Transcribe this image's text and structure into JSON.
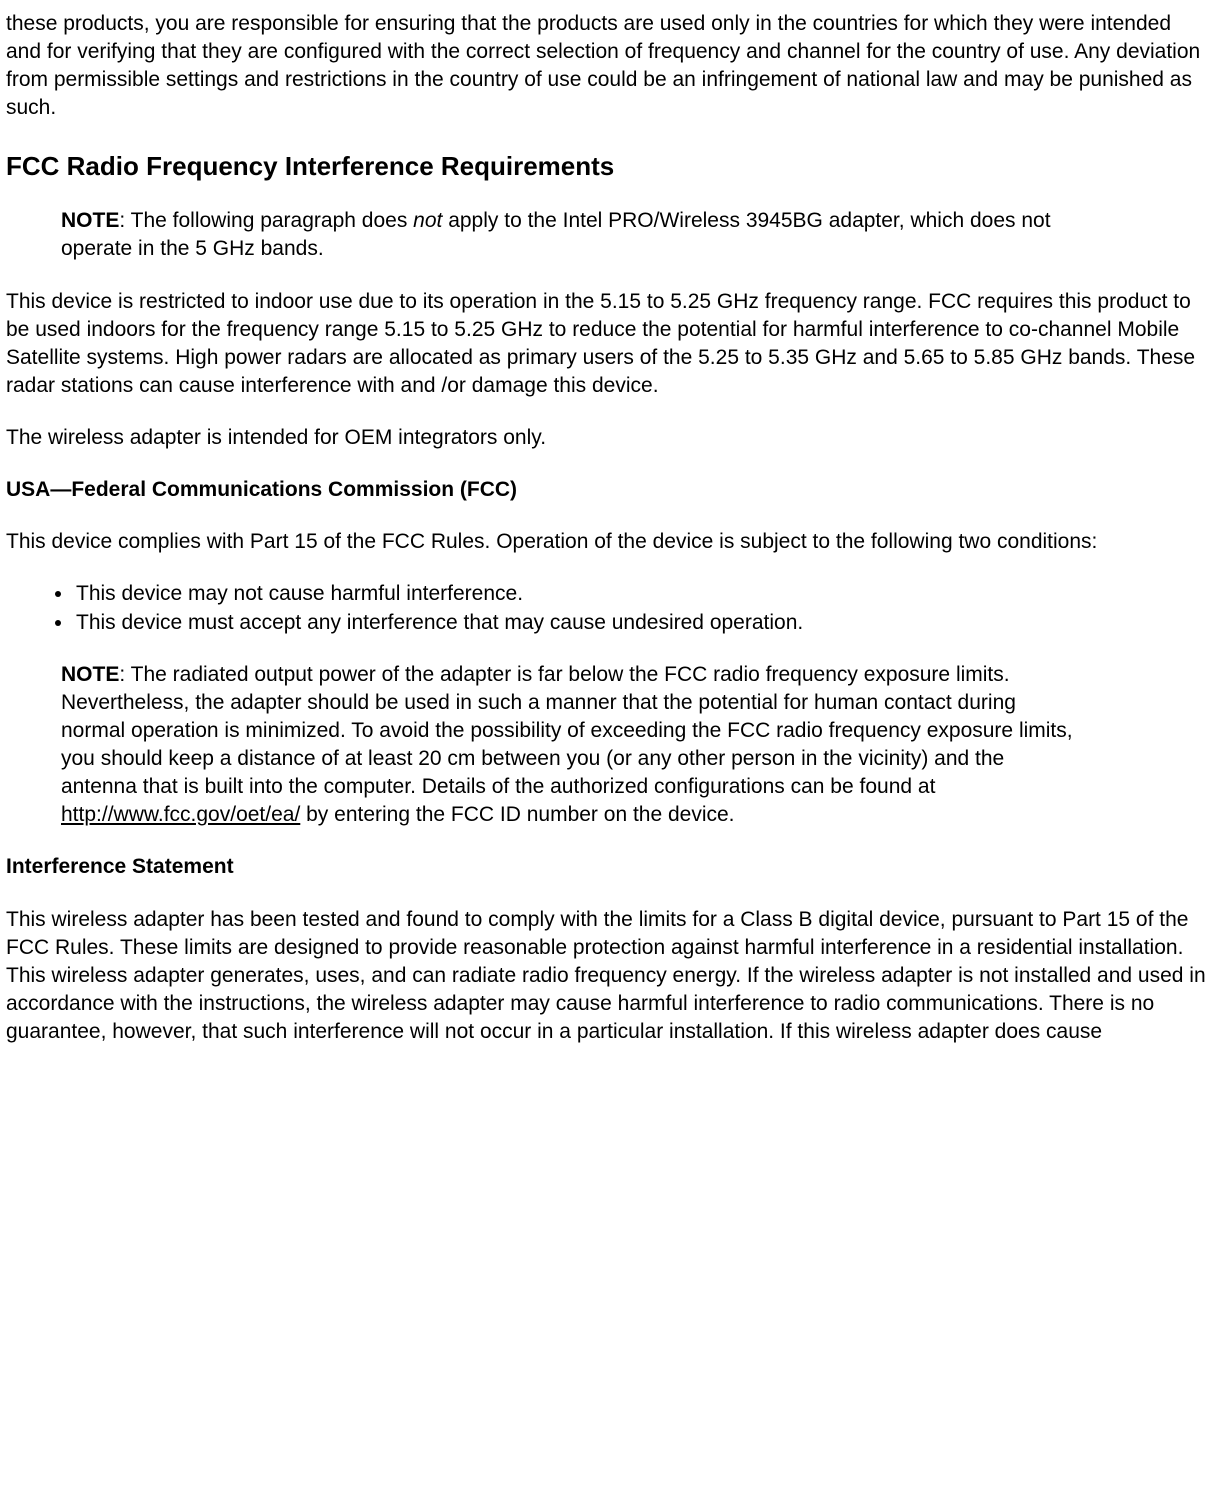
{
  "intro_paragraph": "these products, you are responsible for ensuring that the products are used only in the countries for which they were intended and for verifying that they are configured with the correct selection of frequency and channel for the country of use. Any deviation from permissible settings and restrictions in the country of use could be an infringement of national law and may be punished as such.",
  "section1": {
    "title": "FCC Radio Frequency Interference Requirements",
    "note": {
      "label": "NOTE",
      "before": ": The following paragraph does ",
      "italic": "not",
      "after": " apply to the Intel PRO/Wireless 3945BG adapter, which does not operate in the 5 GHz bands."
    },
    "p1": "This device is restricted to indoor use due to its operation in the 5.15 to 5.25 GHz frequency range. FCC requires this product to be used indoors for the frequency range 5.15 to 5.25 GHz to reduce the potential for harmful interference to co-channel Mobile Satellite systems. High power radars are allocated as primary users of the 5.25 to 5.35 GHz and 5.65 to 5.85 GHz bands. These radar stations can cause interference with and /or damage this device.",
    "p2": "The wireless adapter is intended for OEM integrators only."
  },
  "section2": {
    "title": "USA—Federal Communications Commission (FCC)",
    "p1": "This device complies with Part 15 of the FCC Rules. Operation of the device is subject to the following two conditions:",
    "bullets": [
      "This device may not cause harmful interference.",
      "This device must accept any interference that may cause undesired operation."
    ],
    "note": {
      "label": "NOTE",
      "before": ": The radiated output power of the adapter is far below the FCC radio frequency exposure limits. Nevertheless, the adapter should be used in such a manner that the potential for human contact during normal operation is minimized. To avoid the possibility of exceeding the FCC radio frequency exposure limits, you should keep a distance of at least 20 cm between you (or any other person in the vicinity) and the antenna that is built into the computer. Details of the authorized configurations can be found at ",
      "link_text": "http://www.fcc.gov/oet/ea/",
      "after": " by entering the FCC ID number on the device."
    }
  },
  "section3": {
    "title": "Interference Statement",
    "p1": "This wireless adapter has been tested and found to comply with the limits for a Class B digital device, pursuant to Part 15 of the FCC Rules. These limits are designed to provide reasonable protection against harmful interference in a residential installation. This wireless adapter generates, uses, and can radiate radio frequency energy. If the wireless adapter is not installed and used in accordance with the instructions, the wireless adapter may cause harmful interference to radio communications. There is no guarantee, however, that such interference will not occur in a particular installation. If this wireless adapter does cause"
  }
}
